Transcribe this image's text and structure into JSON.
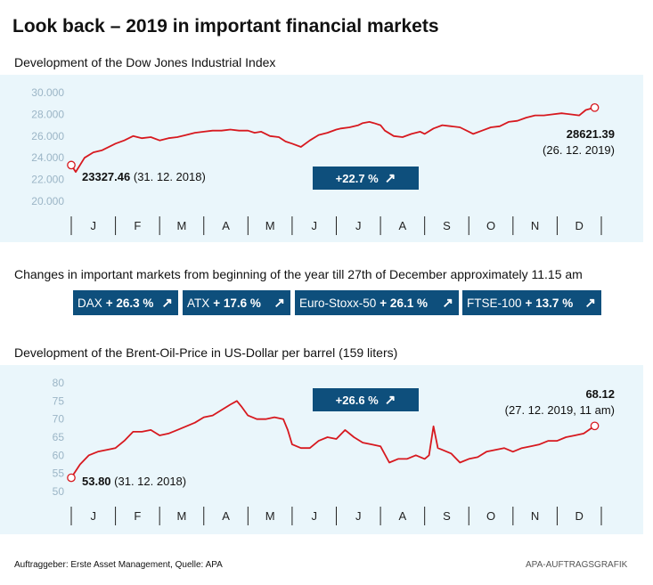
{
  "title": "Look back – 2019 in important financial markets",
  "colors": {
    "line": "#d7191f",
    "panel": "#eaf6fb",
    "badge": "#0e4f7c",
    "axis_text": "#9bb5c6"
  },
  "months": [
    "J",
    "F",
    "M",
    "A",
    "M",
    "J",
    "J",
    "A",
    "S",
    "O",
    "N",
    "D"
  ],
  "dow": {
    "subtitle": "Development of the Dow Jones Industrial Index",
    "change": "+22.7 %",
    "arrow": "↗",
    "start_value": "23327.46",
    "start_date": "(31. 12. 2018)",
    "end_value": "28621.39",
    "end_date": "(26. 12. 2019)"
  },
  "markets": {
    "heading": "Changes in important markets from beginning of the year till 27th of December approximately 11.15 am",
    "items": [
      {
        "name": "DAX",
        "change": "+ 26.3 %",
        "arrow": "↗"
      },
      {
        "name": "ATX",
        "change": "+ 17.6 %",
        "arrow": "↗"
      },
      {
        "name": "Euro-Stoxx-50",
        "change": "+ 26.1 %",
        "arrow": "↗"
      },
      {
        "name": "FTSE-100",
        "change": "+ 13.7 %",
        "arrow": "↗"
      }
    ]
  },
  "oil": {
    "subtitle": "Development of the Brent-Oil-Price in US-Dollar per barrel (159 liters)",
    "change": "+26.6 %",
    "arrow": "↗",
    "start_value": "53.80",
    "start_date": "(31. 12. 2018)",
    "end_value": "68.12",
    "end_date": "(27. 12. 2019, 11 am)"
  },
  "footer": {
    "left": "Auftraggeber: Erste Asset Management, Quelle: APA",
    "right": "APA-AUFTRAGSGRAFIK"
  },
  "chart_data": [
    {
      "type": "line",
      "title": "Development of the Dow Jones Industrial Index",
      "yticks": [
        "30.000",
        "28.000",
        "26.000",
        "24.000",
        "22.000",
        "20.000"
      ],
      "ylim": [
        20000,
        30000
      ],
      "xlim": [
        0,
        12
      ],
      "x_categories": [
        "J",
        "F",
        "M",
        "A",
        "M",
        "J",
        "J",
        "A",
        "S",
        "O",
        "N",
        "D"
      ],
      "grid": false,
      "series": [
        {
          "x": [
            0,
            0.1,
            0.3,
            0.5,
            0.7,
            0.9,
            1.0,
            1.2,
            1.4,
            1.6,
            1.8,
            2.0,
            2.2,
            2.4,
            2.6,
            2.8,
            3.0,
            3.2,
            3.4,
            3.6,
            3.8,
            4.0,
            4.15,
            4.3,
            4.5,
            4.7,
            4.85,
            5.0,
            5.2,
            5.4,
            5.6,
            5.8,
            6.0,
            6.1,
            6.3,
            6.5,
            6.6,
            6.75,
            6.85,
            7.0,
            7.1,
            7.3,
            7.5,
            7.7,
            7.9,
            8.0,
            8.2,
            8.4,
            8.6,
            8.8,
            9.0,
            9.1,
            9.3,
            9.5,
            9.7,
            9.9,
            10.1,
            10.3,
            10.5,
            10.7,
            10.9,
            11.1,
            11.3,
            11.5,
            11.65,
            11.85
          ],
          "y": [
            23327,
            22700,
            24000,
            24500,
            24700,
            25100,
            25300,
            25600,
            26000,
            25800,
            25900,
            25600,
            25800,
            25900,
            26100,
            26300,
            26400,
            26500,
            26500,
            26600,
            26500,
            26500,
            26300,
            26400,
            26000,
            25900,
            25500,
            25300,
            25000,
            25600,
            26100,
            26300,
            26600,
            26700,
            26800,
            27000,
            27200,
            27300,
            27200,
            27000,
            26500,
            26000,
            25900,
            26200,
            26400,
            26200,
            26700,
            27000,
            26900,
            26800,
            26400,
            26200,
            26500,
            26800,
            26900,
            27300,
            27400,
            27700,
            27900,
            27900,
            28000,
            28100,
            28000,
            27900,
            28400,
            28621
          ]
        }
      ]
    },
    {
      "type": "line",
      "title": "Development of the Brent-Oil-Price in US-Dollar per barrel (159 liters)",
      "yticks": [
        "80",
        "75",
        "70",
        "65",
        "60",
        "55",
        "50"
      ],
      "ylim": [
        50,
        80
      ],
      "xlim": [
        0,
        12
      ],
      "x_categories": [
        "J",
        "F",
        "M",
        "A",
        "M",
        "J",
        "J",
        "A",
        "S",
        "O",
        "N",
        "D"
      ],
      "grid": false,
      "series": [
        {
          "x": [
            0,
            0.2,
            0.4,
            0.6,
            0.8,
            1.0,
            1.2,
            1.4,
            1.6,
            1.8,
            2.0,
            2.2,
            2.4,
            2.6,
            2.8,
            3.0,
            3.2,
            3.4,
            3.6,
            3.75,
            3.85,
            4.0,
            4.2,
            4.4,
            4.6,
            4.8,
            4.9,
            5.0,
            5.2,
            5.4,
            5.6,
            5.8,
            6.0,
            6.2,
            6.4,
            6.6,
            6.8,
            7.0,
            7.2,
            7.4,
            7.6,
            7.8,
            8.0,
            8.1,
            8.2,
            8.3,
            8.4,
            8.6,
            8.8,
            9.0,
            9.2,
            9.4,
            9.6,
            9.8,
            10.0,
            10.2,
            10.4,
            10.6,
            10.8,
            11.0,
            11.2,
            11.4,
            11.6,
            11.85
          ],
          "y": [
            53.8,
            57.5,
            60,
            61,
            61.5,
            62,
            64,
            66.5,
            66.5,
            67,
            65.5,
            66,
            67,
            68,
            69,
            70.5,
            71,
            72.5,
            74,
            75,
            73.5,
            71,
            70,
            70,
            70.5,
            70,
            67,
            63,
            62,
            62,
            64,
            65,
            64.5,
            67,
            65,
            63.5,
            63,
            62.5,
            58,
            59,
            59,
            60,
            59,
            60,
            68,
            62,
            61.5,
            60.5,
            58,
            59,
            59.5,
            61,
            61.5,
            62,
            61,
            62,
            62.5,
            63,
            64,
            64,
            65,
            65.5,
            66,
            68.12
          ]
        }
      ]
    }
  ]
}
